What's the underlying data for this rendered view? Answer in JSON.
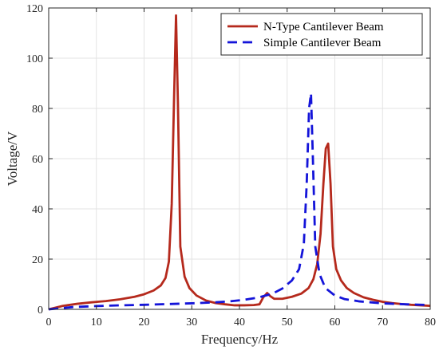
{
  "chart_data": {
    "type": "line",
    "xlabel": "Frequency/Hz",
    "ylabel": "Voltage/V",
    "xlim": [
      0,
      80
    ],
    "ylim": [
      0,
      120
    ],
    "xticks": [
      0,
      10,
      20,
      30,
      40,
      50,
      60,
      70,
      80
    ],
    "yticks": [
      0,
      20,
      40,
      60,
      80,
      100,
      120
    ],
    "x_tick_labels": [
      "0",
      "10",
      "20",
      "30",
      "40",
      "50",
      "60",
      "70",
      "80"
    ],
    "y_tick_labels": [
      "0",
      "20",
      "40",
      "60",
      "80",
      "100",
      "120"
    ],
    "grid": true,
    "legend_position": "top-right",
    "series": [
      {
        "name": "N-Type Cantilever Beam",
        "color": "#b5291c",
        "line_style": "solid",
        "points": [
          [
            0,
            0
          ],
          [
            3,
            1.4
          ],
          [
            6,
            2.2
          ],
          [
            9,
            2.8
          ],
          [
            12,
            3.3
          ],
          [
            15,
            4
          ],
          [
            18,
            5
          ],
          [
            20,
            6
          ],
          [
            22,
            7.5
          ],
          [
            23.5,
            9.5
          ],
          [
            24.5,
            12.5
          ],
          [
            25.2,
            19
          ],
          [
            25.8,
            42
          ],
          [
            26.3,
            85
          ],
          [
            26.7,
            117
          ],
          [
            27.1,
            82
          ],
          [
            27.6,
            25
          ],
          [
            28.5,
            13
          ],
          [
            29.5,
            8.5
          ],
          [
            31,
            5.5
          ],
          [
            33,
            3.5
          ],
          [
            35,
            2.5
          ],
          [
            37,
            2
          ],
          [
            39,
            1.6
          ],
          [
            41,
            1.6
          ],
          [
            43,
            1.7
          ],
          [
            44.2,
            2
          ],
          [
            45,
            4.8
          ],
          [
            45.8,
            6.5
          ],
          [
            46.5,
            5.2
          ],
          [
            47.3,
            4.2
          ],
          [
            49,
            4.2
          ],
          [
            51,
            5
          ],
          [
            53,
            6.3
          ],
          [
            54.5,
            8.5
          ],
          [
            55.5,
            12
          ],
          [
            56.3,
            18
          ],
          [
            57,
            30
          ],
          [
            57.6,
            50
          ],
          [
            58.1,
            64
          ],
          [
            58.6,
            66
          ],
          [
            59.1,
            50
          ],
          [
            59.6,
            25
          ],
          [
            60.3,
            16
          ],
          [
            61.3,
            11.5
          ],
          [
            62.5,
            8.5
          ],
          [
            64,
            6.5
          ],
          [
            66,
            4.8
          ],
          [
            68,
            3.8
          ],
          [
            70,
            3
          ],
          [
            72,
            2.5
          ],
          [
            74,
            2.1
          ],
          [
            76,
            1.8
          ],
          [
            78,
            1.6
          ],
          [
            80,
            1.4
          ]
        ]
      },
      {
        "name": "Simple Cantilever Beam",
        "color": "#1414d9",
        "line_style": "dashed",
        "points": [
          [
            0,
            0
          ],
          [
            5,
            0.9
          ],
          [
            10,
            1.3
          ],
          [
            15,
            1.6
          ],
          [
            20,
            1.8
          ],
          [
            25,
            2.1
          ],
          [
            30,
            2.4
          ],
          [
            35,
            2.8
          ],
          [
            38,
            3.2
          ],
          [
            41,
            3.8
          ],
          [
            44,
            4.7
          ],
          [
            47,
            6.3
          ],
          [
            49,
            8.3
          ],
          [
            51,
            11.5
          ],
          [
            52.5,
            16
          ],
          [
            53.5,
            26
          ],
          [
            54.1,
            50
          ],
          [
            54.6,
            80
          ],
          [
            55,
            86
          ],
          [
            55.4,
            60
          ],
          [
            55.9,
            25
          ],
          [
            56.8,
            14
          ],
          [
            58,
            8.5
          ],
          [
            60,
            5.5
          ],
          [
            62,
            4.1
          ],
          [
            65,
            3.2
          ],
          [
            70,
            2.4
          ],
          [
            75,
            2
          ],
          [
            80,
            1.7
          ]
        ]
      }
    ]
  }
}
